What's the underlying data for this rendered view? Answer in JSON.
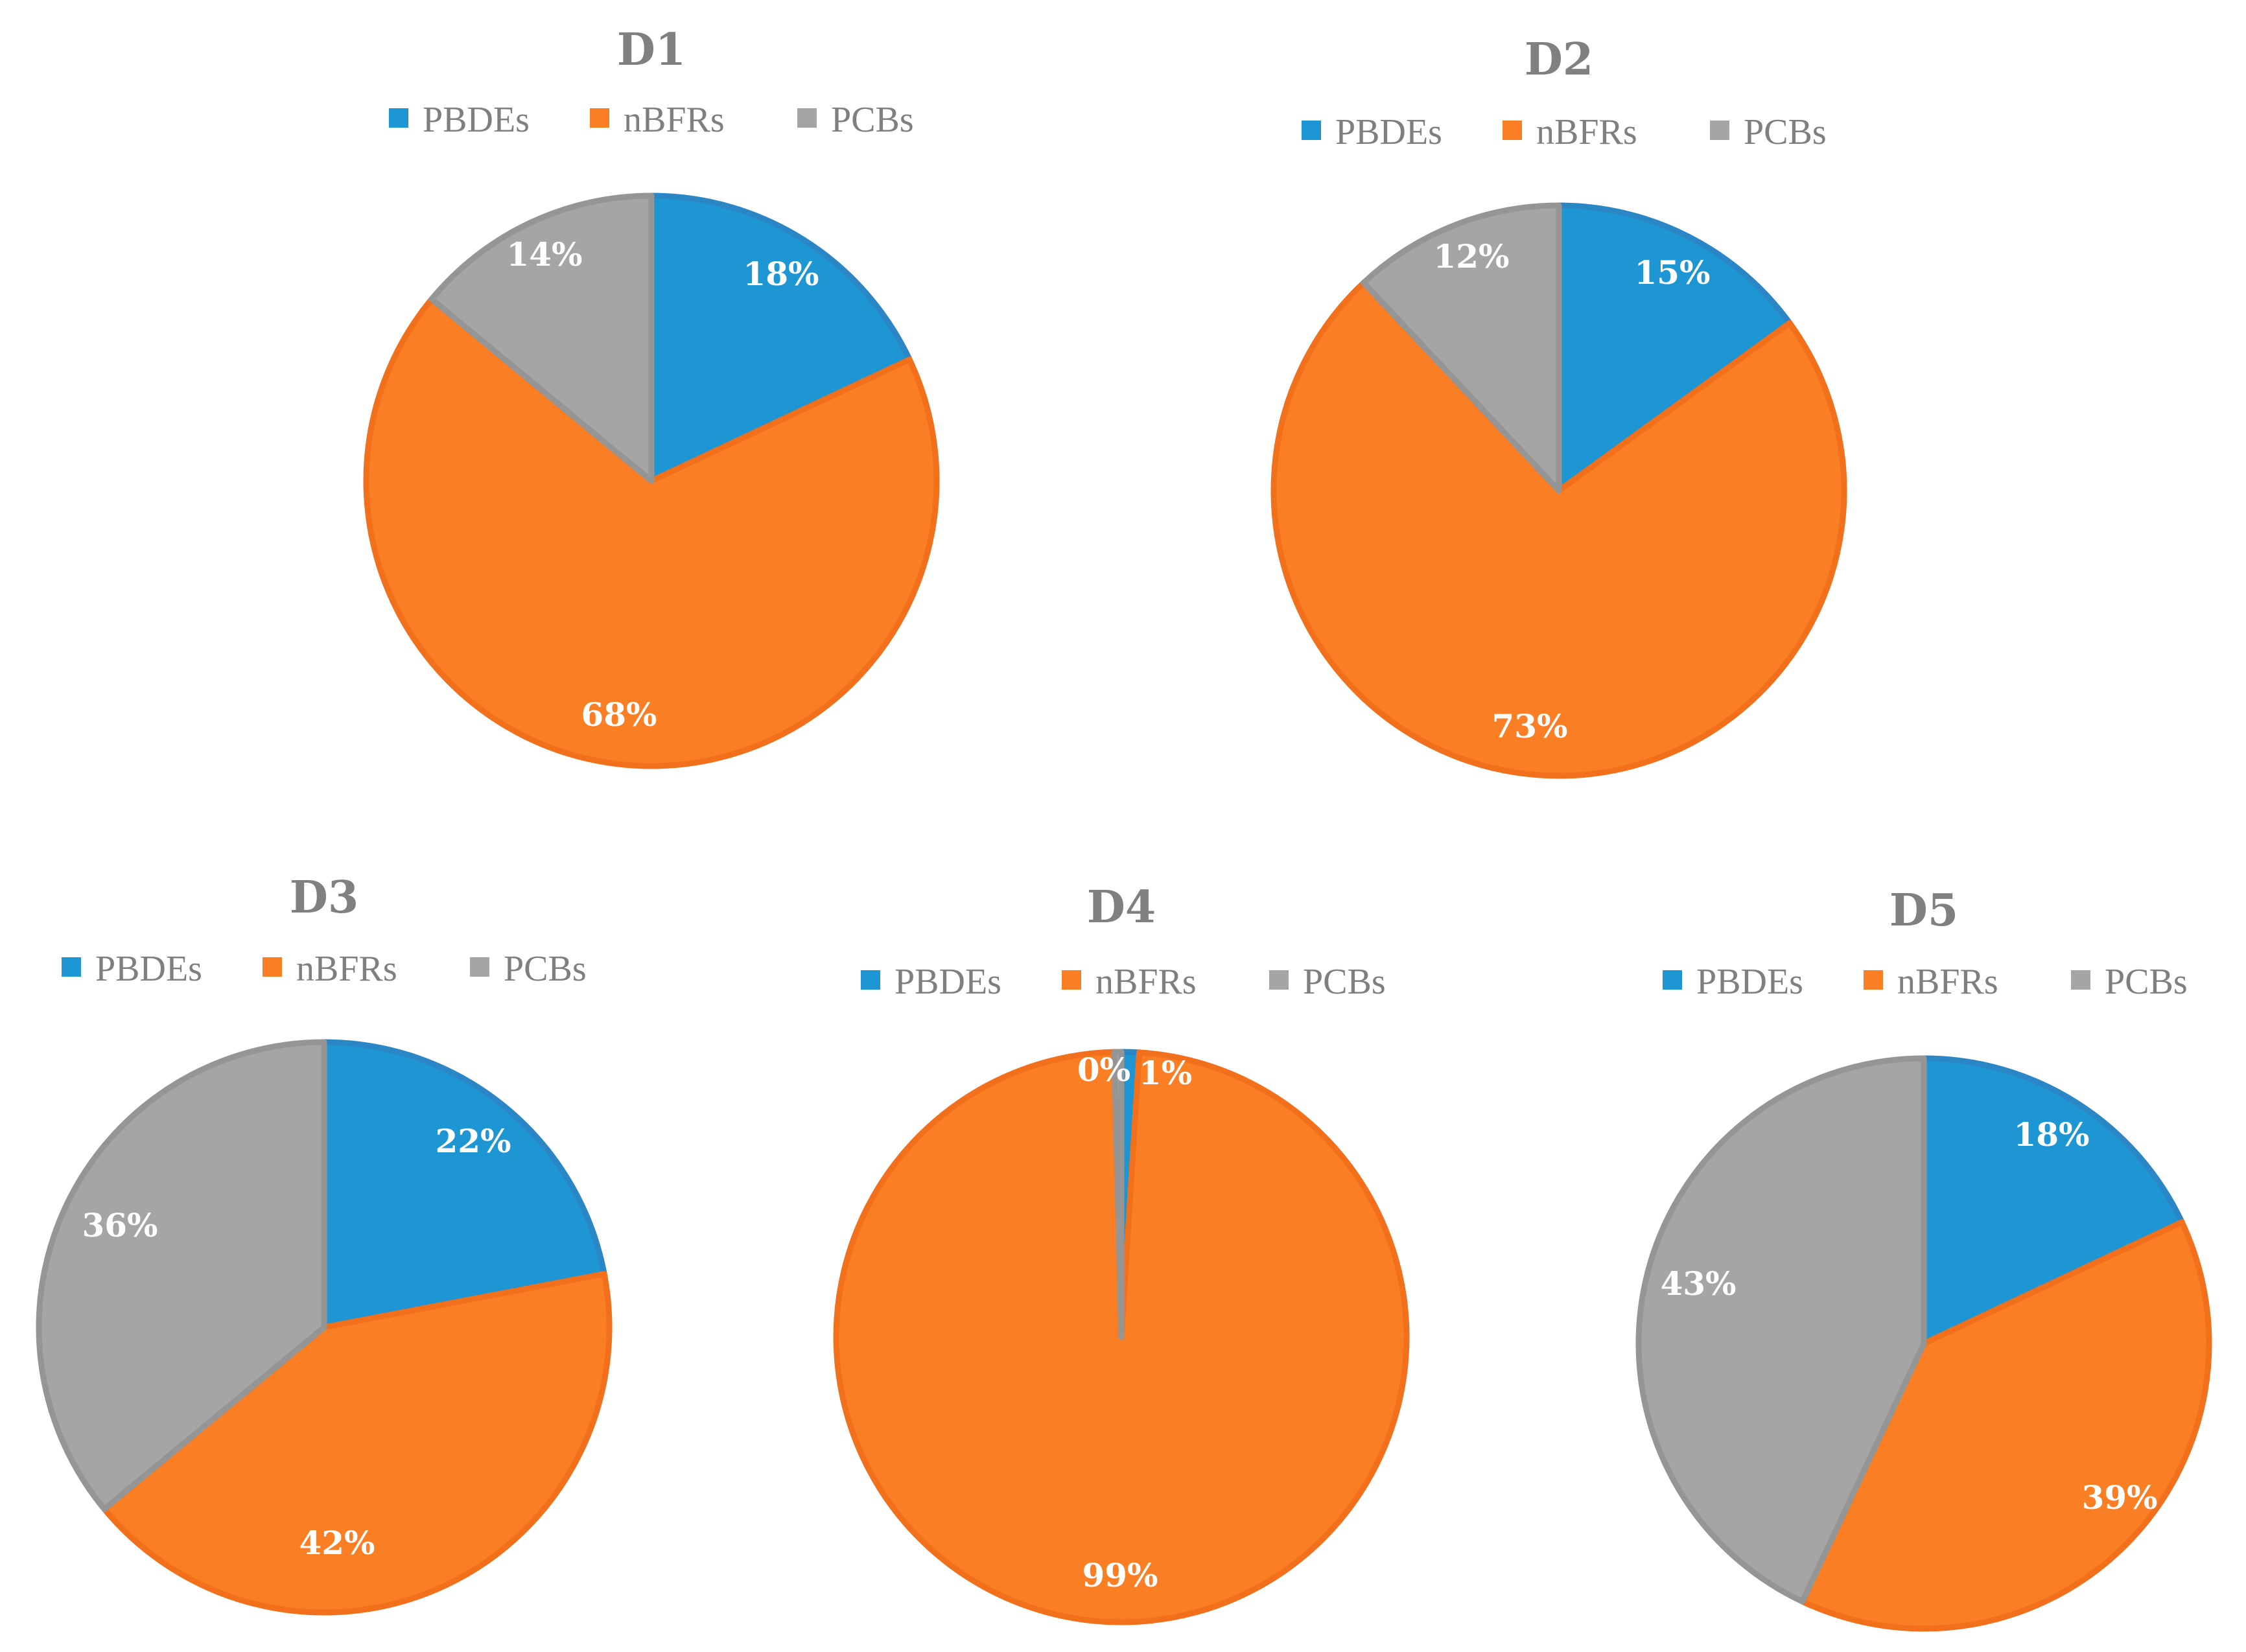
{
  "chart_data": [
    {
      "type": "pie",
      "title": "D1",
      "legend": [
        "PBDEs",
        "nBFRs",
        "PCBs"
      ],
      "labels": [
        "PBDEs",
        "nBFRs",
        "PCBs"
      ],
      "values": [
        18,
        68,
        14
      ],
      "data_labels": [
        "18%",
        "68%",
        "14%"
      ],
      "legend_position": "top"
    },
    {
      "type": "pie",
      "title": "D2",
      "legend": [
        "PBDEs",
        "nBFRs",
        "PCBs"
      ],
      "labels": [
        "PBDEs",
        "nBFRs",
        "PCBs"
      ],
      "values": [
        15,
        73,
        12
      ],
      "data_labels": [
        "15%",
        "73%",
        "12%"
      ],
      "legend_position": "top"
    },
    {
      "type": "pie",
      "title": "D3",
      "legend": [
        "PBDEs",
        "nBFRs",
        "PCBs"
      ],
      "labels": [
        "PBDEs",
        "nBFRs",
        "PCBs"
      ],
      "values": [
        22,
        42,
        36
      ],
      "data_labels": [
        "22%",
        "42%",
        "36%"
      ],
      "legend_position": "top"
    },
    {
      "type": "pie",
      "title": "D4",
      "legend": [
        "PBDEs",
        "nBFRs",
        "PCBs"
      ],
      "labels": [
        "PBDEs",
        "nBFRs",
        "PCBs"
      ],
      "values": [
        1,
        99,
        0.4
      ],
      "data_labels": [
        "1%",
        "99%",
        "0%"
      ],
      "legend_position": "top"
    },
    {
      "type": "pie",
      "title": "D5",
      "legend": [
        "PBDEs",
        "nBFRs",
        "PCBs"
      ],
      "labels": [
        "PBDEs",
        "nBFRs",
        "PCBs"
      ],
      "values": [
        18,
        39,
        43
      ],
      "data_labels": [
        "18%",
        "39%",
        "43%"
      ],
      "legend_position": "top"
    }
  ],
  "colors": {
    "PBDEs": "#1f96d4",
    "nBFRs": "#fa7e23",
    "PCBs": "#a5a5a5",
    "PBDEs_border": "#2b86c5",
    "nBFRs_border": "#f26f1c",
    "PCBs_border": "#959595"
  }
}
